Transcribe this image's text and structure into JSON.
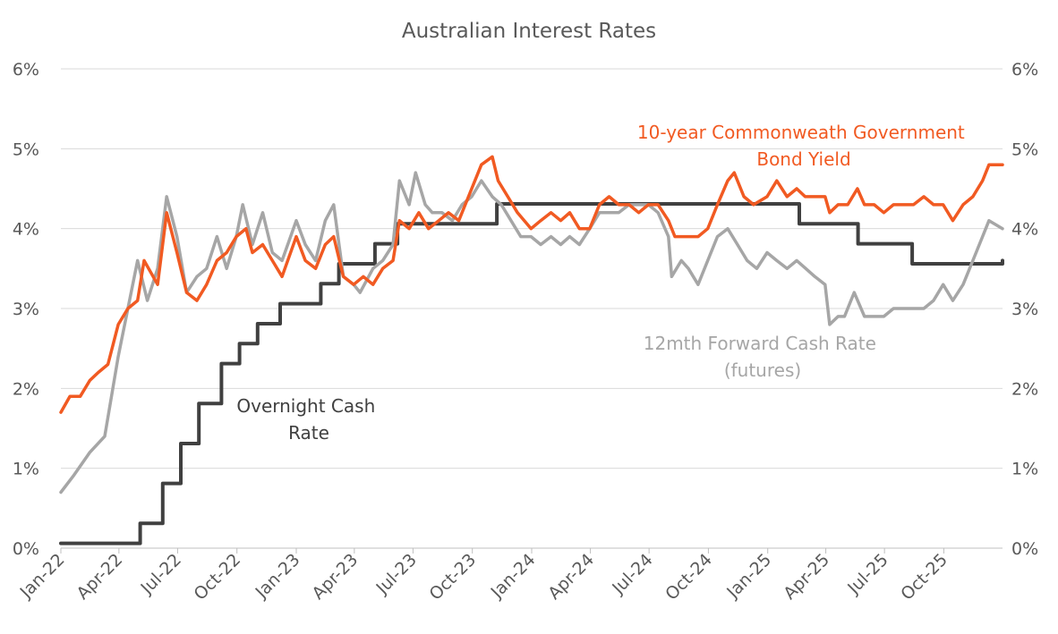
{
  "chart_data": {
    "type": "line",
    "title": "Australian Interest Rates",
    "y_axis": {
      "min": 0,
      "max": 6,
      "ticks": [
        "0%",
        "1%",
        "2%",
        "3%",
        "4%",
        "5%",
        "6%"
      ],
      "right_ticks": [
        "0%",
        "1%",
        "2%",
        "3%",
        "4%",
        "5%",
        "6%"
      ],
      "grid": true
    },
    "x_axis": {
      "start": "2022-01-01",
      "end": "2025-12-31",
      "ticks": [
        {
          "label": "Jan-22",
          "date": "2022-01-01"
        },
        {
          "label": "Apr-22",
          "date": "2022-04-01"
        },
        {
          "label": "Jul-22",
          "date": "2022-07-01"
        },
        {
          "label": "Oct-22",
          "date": "2022-10-01"
        },
        {
          "label": "Jan-23",
          "date": "2023-01-01"
        },
        {
          "label": "Apr-23",
          "date": "2023-04-01"
        },
        {
          "label": "Jul-23",
          "date": "2023-07-01"
        },
        {
          "label": "Oct-23",
          "date": "2023-10-01"
        },
        {
          "label": "Jan-24",
          "date": "2024-01-01"
        },
        {
          "label": "Apr-24",
          "date": "2024-04-01"
        },
        {
          "label": "Jul-24",
          "date": "2024-07-01"
        },
        {
          "label": "Oct-24",
          "date": "2024-10-01"
        },
        {
          "label": "Jan-25",
          "date": "2025-01-01"
        },
        {
          "label": "Apr-25",
          "date": "2025-04-01"
        },
        {
          "label": "Jul-25",
          "date": "2025-07-01"
        },
        {
          "label": "Oct-25",
          "date": "2025-10-01"
        }
      ]
    },
    "series": [
      {
        "name": "Overnight Cash Rate",
        "color": "#404040",
        "style": "step",
        "points": [
          [
            "2022-01-01",
            0.06
          ],
          [
            "2022-05-04",
            0.31
          ],
          [
            "2022-06-08",
            0.81
          ],
          [
            "2022-07-06",
            1.31
          ],
          [
            "2022-08-03",
            1.81
          ],
          [
            "2022-09-07",
            2.31
          ],
          [
            "2022-10-05",
            2.56
          ],
          [
            "2022-11-02",
            2.81
          ],
          [
            "2022-12-07",
            3.06
          ],
          [
            "2023-02-08",
            3.31
          ],
          [
            "2023-03-08",
            3.56
          ],
          [
            "2023-05-03",
            3.81
          ],
          [
            "2023-06-07",
            4.06
          ],
          [
            "2023-11-08",
            4.31
          ],
          [
            "2025-02-19",
            4.06
          ],
          [
            "2025-05-21",
            3.81
          ],
          [
            "2025-08-13",
            3.56
          ],
          [
            "2025-12-31",
            3.6
          ]
        ]
      },
      {
        "name": "12mth Forward Cash Rate (futures)",
        "color": "#a6a6a6",
        "style": "line",
        "points": [
          [
            "2022-01-01",
            0.7
          ],
          [
            "2022-01-20",
            0.9
          ],
          [
            "2022-02-15",
            1.2
          ],
          [
            "2022-03-10",
            1.4
          ],
          [
            "2022-03-31",
            2.4
          ],
          [
            "2022-04-15",
            3.0
          ],
          [
            "2022-04-30",
            3.6
          ],
          [
            "2022-05-15",
            3.1
          ],
          [
            "2022-05-31",
            3.5
          ],
          [
            "2022-06-14",
            4.4
          ],
          [
            "2022-06-30",
            3.9
          ],
          [
            "2022-07-15",
            3.2
          ],
          [
            "2022-07-31",
            3.4
          ],
          [
            "2022-08-15",
            3.5
          ],
          [
            "2022-08-31",
            3.9
          ],
          [
            "2022-09-15",
            3.5
          ],
          [
            "2022-09-30",
            3.9
          ],
          [
            "2022-10-10",
            4.3
          ],
          [
            "2022-10-25",
            3.8
          ],
          [
            "2022-11-10",
            4.2
          ],
          [
            "2022-11-25",
            3.7
          ],
          [
            "2022-12-10",
            3.6
          ],
          [
            "2023-01-01",
            4.1
          ],
          [
            "2023-01-15",
            3.8
          ],
          [
            "2023-01-31",
            3.6
          ],
          [
            "2023-02-15",
            4.1
          ],
          [
            "2023-02-28",
            4.3
          ],
          [
            "2023-03-15",
            3.4
          ],
          [
            "2023-03-31",
            3.3
          ],
          [
            "2023-04-10",
            3.2
          ],
          [
            "2023-04-30",
            3.5
          ],
          [
            "2023-05-15",
            3.6
          ],
          [
            "2023-05-31",
            3.8
          ],
          [
            "2023-06-10",
            4.6
          ],
          [
            "2023-06-25",
            4.3
          ],
          [
            "2023-07-05",
            4.7
          ],
          [
            "2023-07-20",
            4.3
          ],
          [
            "2023-07-31",
            4.2
          ],
          [
            "2023-08-15",
            4.2
          ],
          [
            "2023-08-31",
            4.1
          ],
          [
            "2023-09-15",
            4.3
          ],
          [
            "2023-09-30",
            4.4
          ],
          [
            "2023-10-15",
            4.6
          ],
          [
            "2023-11-01",
            4.4
          ],
          [
            "2023-11-15",
            4.3
          ],
          [
            "2023-11-30",
            4.1
          ],
          [
            "2023-12-15",
            3.9
          ],
          [
            "2023-12-31",
            3.9
          ],
          [
            "2024-01-15",
            3.8
          ],
          [
            "2024-01-31",
            3.9
          ],
          [
            "2024-02-15",
            3.8
          ],
          [
            "2024-02-29",
            3.9
          ],
          [
            "2024-03-15",
            3.8
          ],
          [
            "2024-03-31",
            4.0
          ],
          [
            "2024-04-15",
            4.2
          ],
          [
            "2024-04-30",
            4.2
          ],
          [
            "2024-05-15",
            4.2
          ],
          [
            "2024-05-31",
            4.3
          ],
          [
            "2024-06-15",
            4.3
          ],
          [
            "2024-06-30",
            4.3
          ],
          [
            "2024-07-15",
            4.2
          ],
          [
            "2024-07-31",
            3.9
          ],
          [
            "2024-08-05",
            3.4
          ],
          [
            "2024-08-20",
            3.6
          ],
          [
            "2024-08-31",
            3.5
          ],
          [
            "2024-09-15",
            3.3
          ],
          [
            "2024-09-30",
            3.6
          ],
          [
            "2024-10-15",
            3.9
          ],
          [
            "2024-10-31",
            4.0
          ],
          [
            "2024-11-15",
            3.8
          ],
          [
            "2024-11-30",
            3.6
          ],
          [
            "2024-12-15",
            3.5
          ],
          [
            "2024-12-31",
            3.7
          ],
          [
            "2025-01-15",
            3.6
          ],
          [
            "2025-01-31",
            3.5
          ],
          [
            "2025-02-15",
            3.6
          ],
          [
            "2025-03-01",
            3.5
          ],
          [
            "2025-03-15",
            3.4
          ],
          [
            "2025-03-31",
            3.3
          ],
          [
            "2025-04-07",
            2.8
          ],
          [
            "2025-04-20",
            2.9
          ],
          [
            "2025-04-30",
            2.9
          ],
          [
            "2025-05-15",
            3.2
          ],
          [
            "2025-05-31",
            2.9
          ],
          [
            "2025-06-15",
            2.9
          ],
          [
            "2025-06-30",
            2.9
          ],
          [
            "2025-07-15",
            3.0
          ],
          [
            "2025-07-31",
            3.0
          ],
          [
            "2025-08-15",
            3.0
          ],
          [
            "2025-08-31",
            3.0
          ],
          [
            "2025-09-15",
            3.1
          ],
          [
            "2025-09-30",
            3.3
          ],
          [
            "2025-10-15",
            3.1
          ],
          [
            "2025-10-31",
            3.3
          ],
          [
            "2025-11-15",
            3.6
          ],
          [
            "2025-11-30",
            3.9
          ],
          [
            "2025-12-10",
            4.1
          ],
          [
            "2025-12-31",
            4.0
          ]
        ]
      },
      {
        "name": "10-year Commonweath Government Bond Yield",
        "color": "#f15a22",
        "style": "line",
        "points": [
          [
            "2022-01-01",
            1.7
          ],
          [
            "2022-01-15",
            1.9
          ],
          [
            "2022-01-31",
            1.9
          ],
          [
            "2022-02-15",
            2.1
          ],
          [
            "2022-02-28",
            2.2
          ],
          [
            "2022-03-15",
            2.3
          ],
          [
            "2022-03-31",
            2.8
          ],
          [
            "2022-04-15",
            3.0
          ],
          [
            "2022-04-30",
            3.1
          ],
          [
            "2022-05-10",
            3.6
          ],
          [
            "2022-05-31",
            3.3
          ],
          [
            "2022-06-14",
            4.2
          ],
          [
            "2022-06-30",
            3.7
          ],
          [
            "2022-07-15",
            3.2
          ],
          [
            "2022-07-31",
            3.1
          ],
          [
            "2022-08-15",
            3.3
          ],
          [
            "2022-08-31",
            3.6
          ],
          [
            "2022-09-15",
            3.7
          ],
          [
            "2022-09-30",
            3.9
          ],
          [
            "2022-10-15",
            4.0
          ],
          [
            "2022-10-25",
            3.7
          ],
          [
            "2022-11-10",
            3.8
          ],
          [
            "2022-11-25",
            3.6
          ],
          [
            "2022-12-10",
            3.4
          ],
          [
            "2023-01-01",
            3.9
          ],
          [
            "2023-01-15",
            3.6
          ],
          [
            "2023-01-31",
            3.5
          ],
          [
            "2023-02-15",
            3.8
          ],
          [
            "2023-02-28",
            3.9
          ],
          [
            "2023-03-15",
            3.4
          ],
          [
            "2023-03-31",
            3.3
          ],
          [
            "2023-04-15",
            3.4
          ],
          [
            "2023-04-30",
            3.3
          ],
          [
            "2023-05-15",
            3.5
          ],
          [
            "2023-05-31",
            3.6
          ],
          [
            "2023-06-10",
            4.1
          ],
          [
            "2023-06-25",
            4.0
          ],
          [
            "2023-07-10",
            4.2
          ],
          [
            "2023-07-25",
            4.0
          ],
          [
            "2023-08-10",
            4.1
          ],
          [
            "2023-08-25",
            4.2
          ],
          [
            "2023-09-10",
            4.1
          ],
          [
            "2023-09-25",
            4.4
          ],
          [
            "2023-10-15",
            4.8
          ],
          [
            "2023-11-01",
            4.9
          ],
          [
            "2023-11-10",
            4.6
          ],
          [
            "2023-11-25",
            4.4
          ],
          [
            "2023-12-10",
            4.2
          ],
          [
            "2023-12-31",
            4.0
          ],
          [
            "2024-01-15",
            4.1
          ],
          [
            "2024-01-31",
            4.2
          ],
          [
            "2024-02-15",
            4.1
          ],
          [
            "2024-02-29",
            4.2
          ],
          [
            "2024-03-15",
            4.0
          ],
          [
            "2024-03-31",
            4.0
          ],
          [
            "2024-04-15",
            4.3
          ],
          [
            "2024-04-30",
            4.4
          ],
          [
            "2024-05-15",
            4.3
          ],
          [
            "2024-05-31",
            4.3
          ],
          [
            "2024-06-15",
            4.2
          ],
          [
            "2024-06-30",
            4.3
          ],
          [
            "2024-07-15",
            4.3
          ],
          [
            "2024-07-31",
            4.1
          ],
          [
            "2024-08-10",
            3.9
          ],
          [
            "2024-08-25",
            3.9
          ],
          [
            "2024-09-15",
            3.9
          ],
          [
            "2024-09-30",
            4.0
          ],
          [
            "2024-10-15",
            4.3
          ],
          [
            "2024-10-31",
            4.6
          ],
          [
            "2024-11-10",
            4.7
          ],
          [
            "2024-11-25",
            4.4
          ],
          [
            "2024-12-10",
            4.3
          ],
          [
            "2024-12-31",
            4.4
          ],
          [
            "2025-01-15",
            4.6
          ],
          [
            "2025-01-31",
            4.4
          ],
          [
            "2025-02-15",
            4.5
          ],
          [
            "2025-02-28",
            4.4
          ],
          [
            "2025-03-15",
            4.4
          ],
          [
            "2025-03-31",
            4.4
          ],
          [
            "2025-04-07",
            4.2
          ],
          [
            "2025-04-20",
            4.3
          ],
          [
            "2025-05-05",
            4.3
          ],
          [
            "2025-05-20",
            4.5
          ],
          [
            "2025-05-31",
            4.3
          ],
          [
            "2025-06-15",
            4.3
          ],
          [
            "2025-06-30",
            4.2
          ],
          [
            "2025-07-15",
            4.3
          ],
          [
            "2025-07-31",
            4.3
          ],
          [
            "2025-08-15",
            4.3
          ],
          [
            "2025-08-31",
            4.4
          ],
          [
            "2025-09-15",
            4.3
          ],
          [
            "2025-09-30",
            4.3
          ],
          [
            "2025-10-15",
            4.1
          ],
          [
            "2025-10-31",
            4.3
          ],
          [
            "2025-11-15",
            4.4
          ],
          [
            "2025-11-30",
            4.6
          ],
          [
            "2025-12-10",
            4.8
          ],
          [
            "2025-12-31",
            4.8
          ]
        ]
      }
    ],
    "annotations": {
      "bond": [
        "10-year Commonweath Government",
        "Bond Yield"
      ],
      "futures": [
        "12mth Forward Cash Rate",
        "(futures)"
      ],
      "cash": [
        "Overnight Cash",
        "Rate"
      ]
    }
  }
}
